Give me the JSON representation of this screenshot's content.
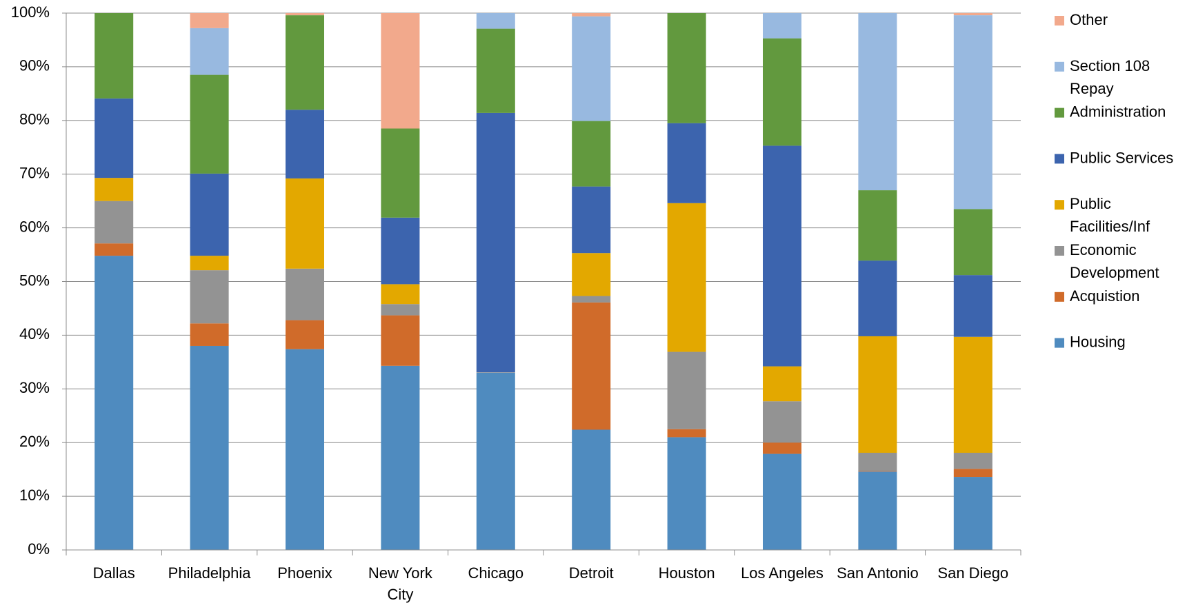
{
  "chart_data": {
    "type": "stacked_bar",
    "categories": [
      "Dallas",
      "Philadelphia",
      "Phoenix",
      "New York City",
      "Chicago",
      "Detroit",
      "Houston",
      "Los Angeles",
      "San Antonio",
      "San Diego"
    ],
    "series": [
      {
        "name": "Housing",
        "color": "#4f8bbf",
        "values": [
          54.8,
          38,
          37.4,
          34.3,
          33,
          22.4,
          21,
          17.9,
          14.6,
          13.6
        ]
      },
      {
        "name": "Acquistion",
        "color": "#d06b2a",
        "values": [
          2.3,
          4.2,
          5.4,
          9.4,
          0,
          23.7,
          1.5,
          2.1,
          0.1,
          1.5
        ]
      },
      {
        "name": "Economic Development",
        "color": "#939393",
        "values": [
          7.9,
          9.9,
          9.6,
          2.1,
          0.1,
          1.2,
          14.4,
          7.7,
          3.4,
          3
        ]
      },
      {
        "name": "Public Facilities/Inf",
        "color": "#e3a800",
        "values": [
          4.3,
          2.7,
          16.8,
          3.7,
          0,
          8,
          27.7,
          6.5,
          21.7,
          21.6
        ]
      },
      {
        "name": "Public Services",
        "color": "#3c64ae",
        "values": [
          14.8,
          15.3,
          12.8,
          12.4,
          48.3,
          12.4,
          14.9,
          41.1,
          14.1,
          11.5
        ]
      },
      {
        "name": "Administration",
        "color": "#62993e",
        "values": [
          15.9,
          18.4,
          17.6,
          16.6,
          15.7,
          12.2,
          20.5,
          20,
          13.1,
          12.3
        ]
      },
      {
        "name": "Section 108 Repay",
        "color": "#98b9e0",
        "values": [
          0,
          8.7,
          0,
          0,
          2.9,
          19.5,
          0,
          4.7,
          33,
          36.1
        ]
      },
      {
        "name": "Other",
        "color": "#f2a98c",
        "values": [
          0,
          2.8,
          0.4,
          21.5,
          0,
          0.6,
          0,
          0,
          0,
          0.4
        ]
      }
    ],
    "ylim": [
      0,
      100
    ],
    "yticks": [
      {
        "value": 0,
        "label": "0%"
      },
      {
        "value": 10,
        "label": "10%"
      },
      {
        "value": 20,
        "label": "20%"
      },
      {
        "value": 30,
        "label": "30%"
      },
      {
        "value": 40,
        "label": "40%"
      },
      {
        "value": 50,
        "label": "50%"
      },
      {
        "value": 60,
        "label": "60%"
      },
      {
        "value": 70,
        "label": "70%"
      },
      {
        "value": 80,
        "label": "80%"
      },
      {
        "value": 90,
        "label": "90%"
      },
      {
        "value": 100,
        "label": "100%"
      }
    ],
    "grid": true,
    "legend": "right"
  }
}
